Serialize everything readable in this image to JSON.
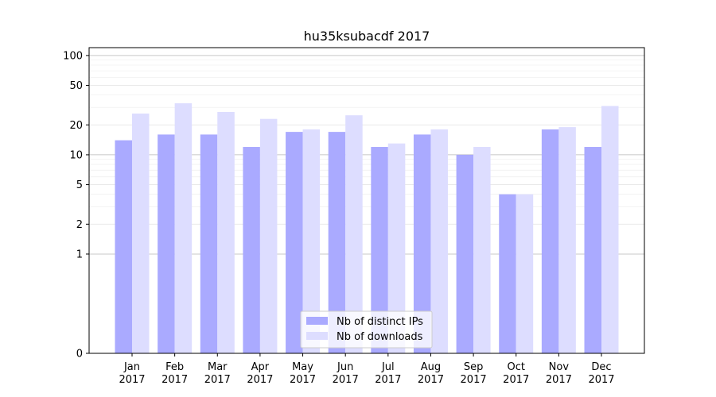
{
  "chart_data": {
    "type": "bar",
    "title": "hu35ksubacdf 2017",
    "xlabel": "",
    "ylabel": "",
    "yscale": "symlog",
    "ylim": [
      0,
      120
    ],
    "y_ticks": [
      {
        "value": 0,
        "label": "0"
      },
      {
        "value": 1,
        "label": "1"
      },
      {
        "value": 2,
        "label": "2"
      },
      {
        "value": 5,
        "label": "5"
      },
      {
        "value": 10,
        "label": "10"
      },
      {
        "value": 20,
        "label": "20"
      },
      {
        "value": 50,
        "label": "50"
      },
      {
        "value": 100,
        "label": "100"
      }
    ],
    "grid": true,
    "legend_position": "bottom-center",
    "categories": [
      "Jan\n2017",
      "Feb\n2017",
      "Mar\n2017",
      "Apr\n2017",
      "May\n2017",
      "Jun\n2017",
      "Jul\n2017",
      "Aug\n2017",
      "Sep\n2017",
      "Oct\n2017",
      "Nov\n2017",
      "Dec\n2017"
    ],
    "series": [
      {
        "name": "Nb of distinct IPs",
        "color": "#aaaaff",
        "values": [
          14,
          16,
          16,
          12,
          17,
          17,
          12,
          16,
          10,
          4,
          18,
          12
        ]
      },
      {
        "name": "Nb of downloads",
        "color": "#ddddff",
        "values": [
          26,
          33,
          27,
          23,
          18,
          25,
          13,
          18,
          12,
          4,
          19,
          31
        ]
      }
    ]
  }
}
